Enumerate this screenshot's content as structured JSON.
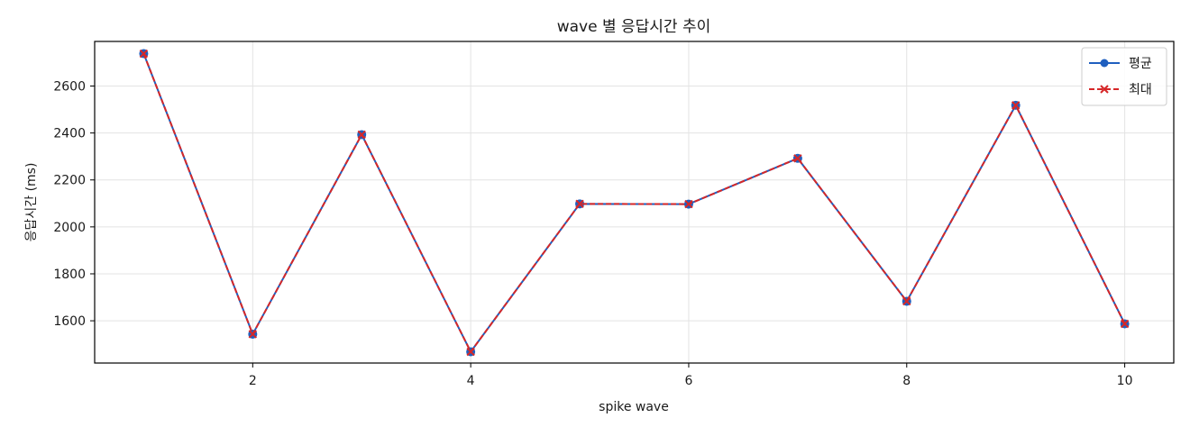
{
  "chart_data": {
    "type": "line",
    "title": "wave 별 응답시간 추이",
    "xlabel": "spike wave",
    "ylabel": "응답시간 (ms)",
    "x": [
      1,
      2,
      3,
      4,
      5,
      6,
      7,
      8,
      9,
      10
    ],
    "series": [
      {
        "name": "평균",
        "values": [
          2738,
          1543,
          2393,
          1468,
          2098,
          2097,
          2292,
          1683,
          2518,
          1587
        ],
        "color": "#1f5fbf",
        "marker": "circle",
        "line_style": "solid"
      },
      {
        "name": "최대",
        "values": [
          2738,
          1543,
          2393,
          1468,
          2098,
          2097,
          2292,
          1683,
          2518,
          1587
        ],
        "color": "#d62728",
        "marker": "x",
        "line_style": "dashed"
      }
    ],
    "xlim": [
      0.55,
      10.45
    ],
    "ylim": [
      1420,
      2790
    ],
    "xticks": [
      2,
      4,
      6,
      8,
      10
    ],
    "yticks": [
      1600,
      1800,
      2000,
      2200,
      2400,
      2600
    ],
    "grid": true,
    "legend_position": "top-right"
  }
}
